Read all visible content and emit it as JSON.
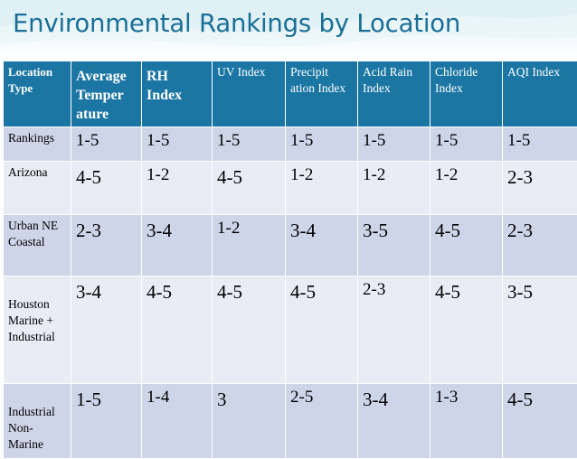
{
  "slide": {
    "title": "Environmental Rankings by Location"
  },
  "table": {
    "headers": [
      "Location Type",
      "Average Temper ature",
      "RH Index",
      "UV Index",
      "Precipit ation Index",
      "Acid Rain Index",
      "Chloride Index",
      "AQI Index"
    ],
    "rows": [
      {
        "label": "Rankings",
        "values": [
          "1-5",
          "1-5",
          "1-5",
          "1-5",
          "1-5",
          "1-5",
          "1-5"
        ]
      },
      {
        "label": "Arizona",
        "values": [
          "4-5",
          "1-2",
          "4-5",
          "1-2",
          "1-2",
          "1-2",
          "2-3"
        ]
      },
      {
        "label": "Urban NE Coastal",
        "values": [
          "2-3",
          "3-4",
          "1-2",
          "3-4",
          "3-5",
          "4-5",
          "2-3"
        ]
      },
      {
        "label": "Houston Marine + Industrial",
        "values": [
          "3-4",
          "4-5",
          "4-5",
          "4-5",
          "2-3",
          "4-5",
          "3-5"
        ]
      },
      {
        "label": "Industrial Non-Marine",
        "values": [
          "1-5",
          "1-4",
          "3",
          "2-5",
          "3-4",
          "1-3",
          "4-5"
        ]
      }
    ]
  },
  "colors": {
    "header_bg": "#1b76a4",
    "row_dark": "#cfd5e9",
    "row_light": "#e9ebf5",
    "title": "#1a6f96"
  }
}
